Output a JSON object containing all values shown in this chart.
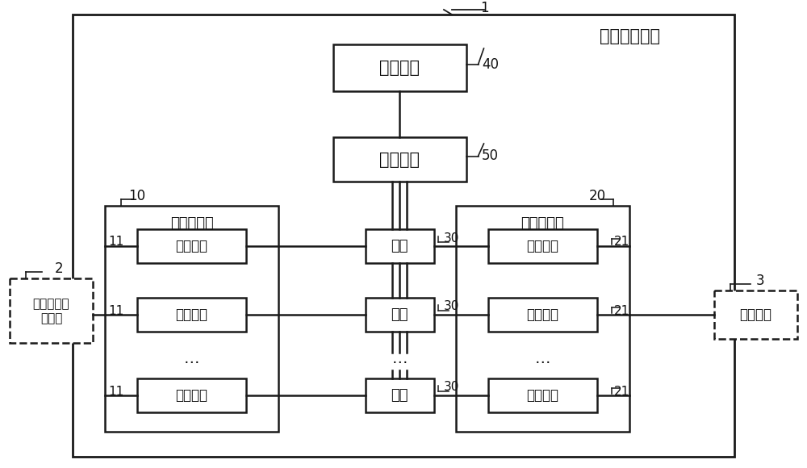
{
  "bg_color": "#ffffff",
  "main_box_fc": "#ffffff",
  "box_ec": "#1a1a1a",
  "title": "信号转接装置",
  "label_1": "1",
  "label_2": "2",
  "label_3": "3",
  "label_10": "10",
  "label_11": "11",
  "label_20": "20",
  "label_21": "21",
  "label_30": "30",
  "label_40": "40",
  "label_50": "50",
  "ctrl_text": "控制模块",
  "drive_text": "驱动电路",
  "group1_text": "第一端子组",
  "group2_text": "第二端子组",
  "term1_text": "第一端子",
  "term2_text": "第二端子",
  "switch_text": "开关",
  "hil_line1": "硬件在环测",
  "hil_line2": "试系统",
  "dut_text": "待测装置",
  "dots": "…",
  "figw": 10.0,
  "figh": 5.8,
  "dpi": 100
}
